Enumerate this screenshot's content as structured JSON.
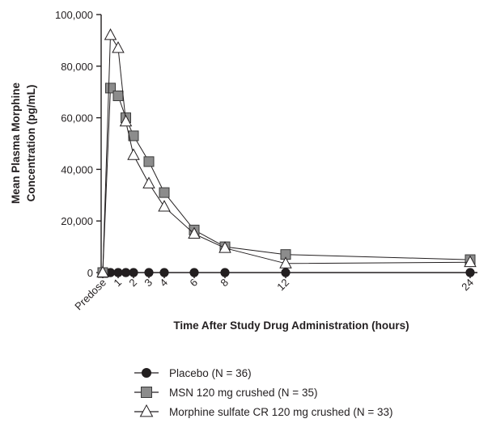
{
  "chart_data": {
    "type": "line",
    "xlabel": "Time After Study Drug Administration (hours)",
    "ylabel_lines": [
      "Mean Plasma  Morphine",
      "Concentration (pg/mL)"
    ],
    "ylim": [
      0,
      100000
    ],
    "yticks": [
      0,
      20000,
      40000,
      60000,
      80000,
      100000
    ],
    "ytick_labels": [
      "0",
      "20,000",
      "40,000",
      "60,000",
      "80,000",
      "100,000"
    ],
    "x_scale": "nonlinear",
    "xticks": [
      {
        "value": 0,
        "label": "Predose"
      },
      {
        "value": 1,
        "label": "1"
      },
      {
        "value": 2,
        "label": "2"
      },
      {
        "value": 3,
        "label": "3"
      },
      {
        "value": 4,
        "label": "4"
      },
      {
        "value": 6,
        "label": "6"
      },
      {
        "value": 8,
        "label": "8"
      },
      {
        "value": 12,
        "label": "12"
      },
      {
        "value": 24,
        "label": "24"
      }
    ],
    "legend_position": "bottom",
    "series": [
      {
        "name": "Placebo (N = 36)",
        "marker": "circle",
        "color": "#231f20",
        "points": [
          [
            0,
            0
          ],
          [
            0.5,
            0
          ],
          [
            1,
            0
          ],
          [
            1.5,
            0
          ],
          [
            2,
            0
          ],
          [
            3,
            0
          ],
          [
            4,
            0
          ],
          [
            6,
            0
          ],
          [
            8,
            0
          ],
          [
            12,
            0
          ],
          [
            24,
            0
          ]
        ]
      },
      {
        "name": "MSN 120 mg crushed (N = 35)",
        "marker": "square",
        "color": "#8c8c8c",
        "points": [
          [
            0,
            0
          ],
          [
            0.5,
            71500
          ],
          [
            1,
            68500
          ],
          [
            1.5,
            60000
          ],
          [
            2,
            53000
          ],
          [
            3,
            43000
          ],
          [
            4,
            31000
          ],
          [
            6,
            16500
          ],
          [
            8,
            10000
          ],
          [
            12,
            7000
          ],
          [
            24,
            5000
          ]
        ]
      },
      {
        "name": "Morphine sulfate CR 120 mg crushed (N = 33)",
        "marker": "triangle",
        "color": "#ffffff",
        "points": [
          [
            0,
            0
          ],
          [
            0.5,
            92000
          ],
          [
            1,
            87000
          ],
          [
            1.5,
            58500
          ],
          [
            2,
            45500
          ],
          [
            3,
            34500
          ],
          [
            4,
            25500
          ],
          [
            6,
            15000
          ],
          [
            8,
            9500
          ],
          [
            12,
            3500
          ],
          [
            24,
            4000
          ]
        ]
      }
    ]
  }
}
